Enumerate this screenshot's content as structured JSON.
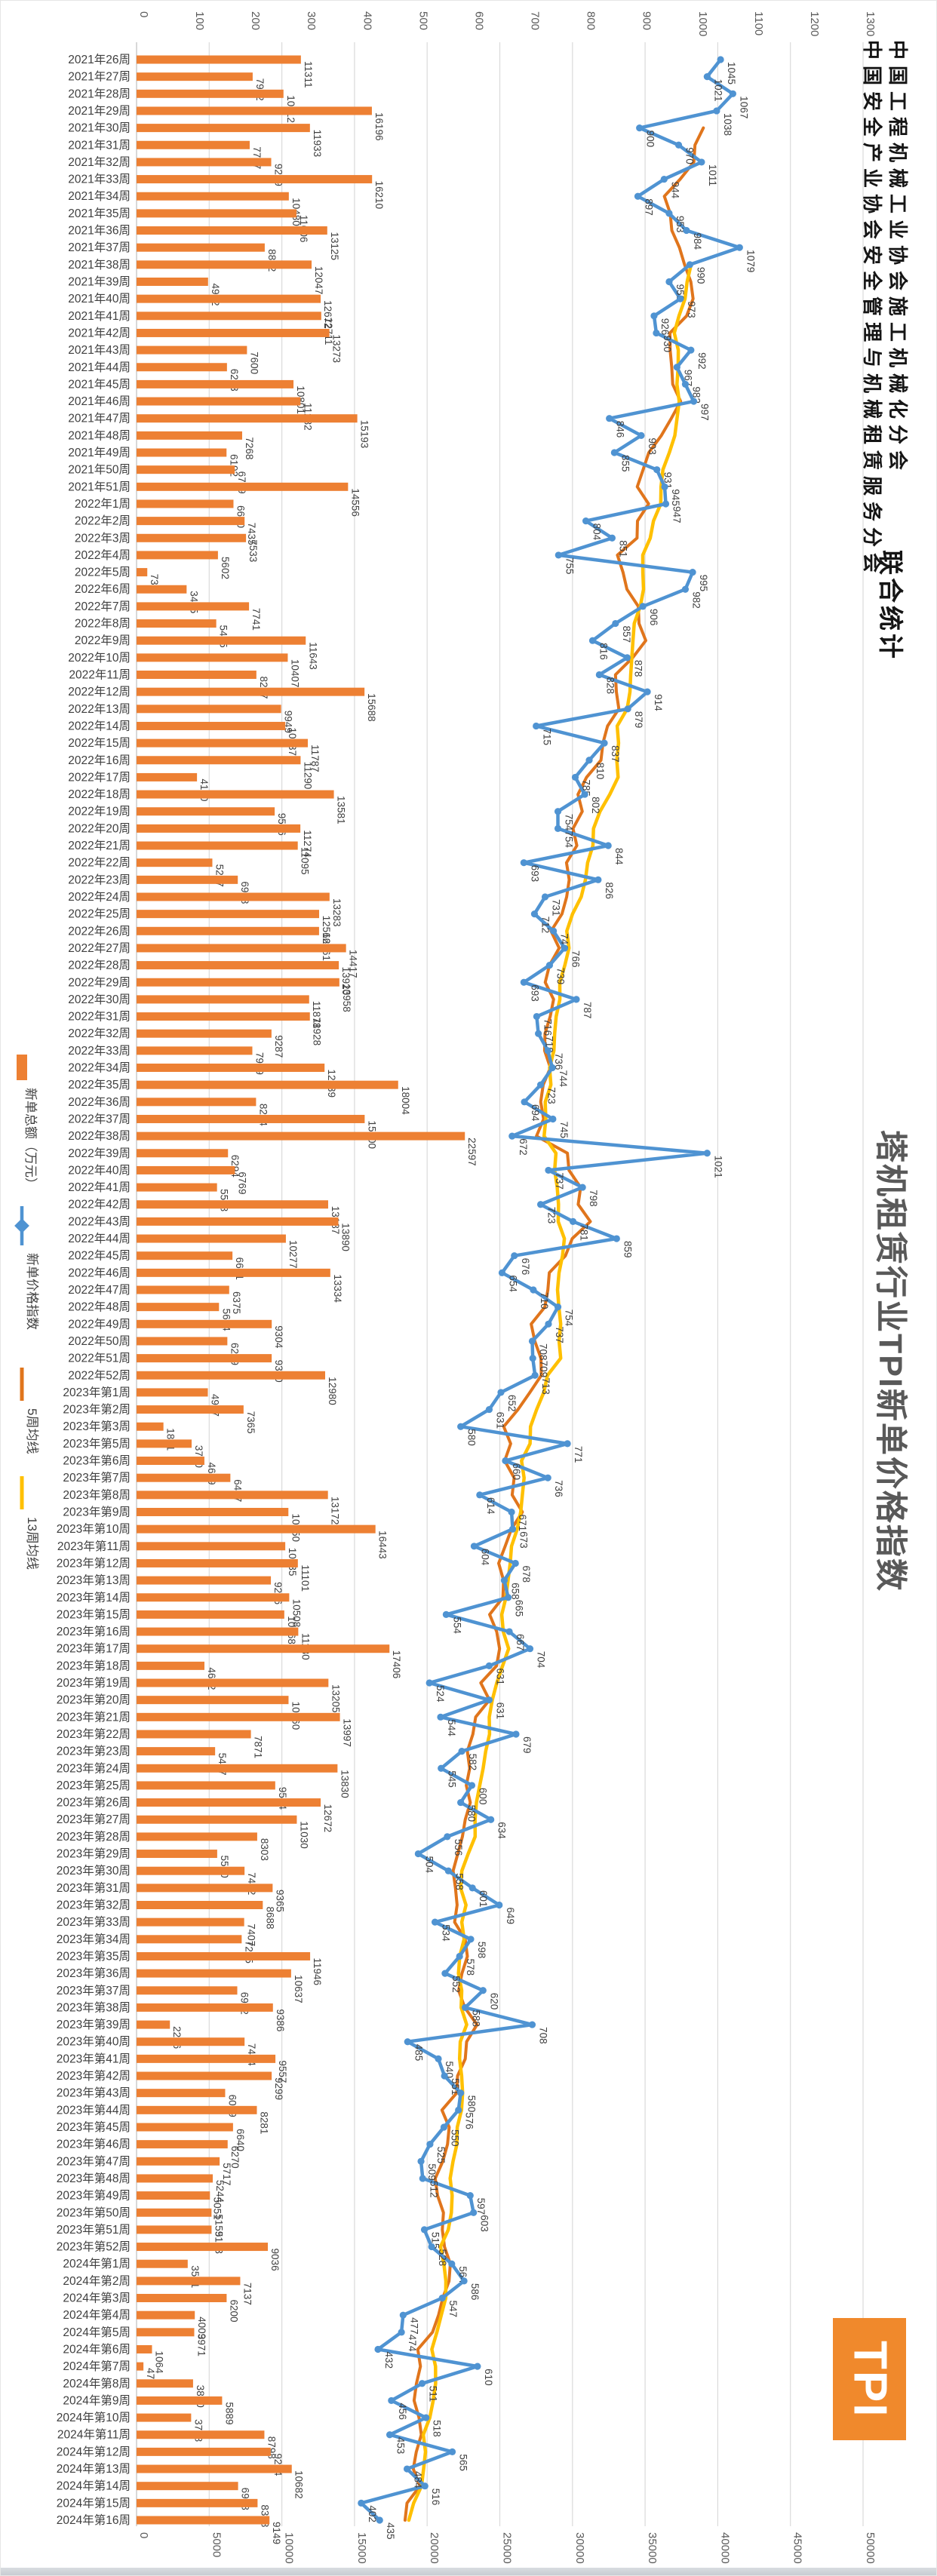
{
  "page": {
    "title": "塔机租赁行业TPI新单价格指数",
    "credit_line_1": "中国工程机械工业协会施工机械化分会",
    "credit_line_2": "中国安全产业协会安全管理与机械租赁服务分会",
    "credit_suffix": "联合统计",
    "logo_text": "TPI",
    "logo_color": "#F0892C"
  },
  "legend": {
    "items": [
      {
        "label": "新单总额（万元）",
        "type": "bar-swatch",
        "color": "#ED8033"
      },
      {
        "label": "新单价格指数",
        "type": "line-marker",
        "color": "#4F93D2"
      },
      {
        "label": "5周均线",
        "type": "line",
        "color": "#E0751C"
      },
      {
        "label": "13周均线",
        "type": "line",
        "color": "#FFC000"
      }
    ]
  },
  "chart_data": {
    "type": "bar",
    "note": "rotated 90deg: categories run vertically, bars extend horizontally",
    "title": "塔机租赁行业TPI新单价格指数",
    "grid": true,
    "axis_top": {
      "label": "价格指数",
      "min": 0,
      "max": 1300,
      "step": 100
    },
    "axis_bottom": {
      "label": "新单总额（万元）",
      "min": 0,
      "max": 50000,
      "step": 5000
    },
    "categories": [
      "2021年26周",
      "2021年27周",
      "2021年28周",
      "2021年29周",
      "2021年30周",
      "2021年31周",
      "2021年32周",
      "2021年33周",
      "2021年34周",
      "2021年35周",
      "2021年36周",
      "2021年37周",
      "2021年38周",
      "2021年39周",
      "2021年40周",
      "2021年41周",
      "2021年42周",
      "2021年43周",
      "2021年44周",
      "2021年45周",
      "2021年46周",
      "2021年47周",
      "2021年48周",
      "2021年49周",
      "2021年50周",
      "2021年51周",
      "2022年1周",
      "2022年2周",
      "2022年3周",
      "2022年4周",
      "2022年5周",
      "2022年6周",
      "2022年7周",
      "2022年8周",
      "2022年9周",
      "2022年10周",
      "2022年11周",
      "2022年12周",
      "2022年13周",
      "2022年14周",
      "2022年15周",
      "2022年16周",
      "2022年17周",
      "2022年18周",
      "2022年19周",
      "2022年20周",
      "2022年21周",
      "2022年22周",
      "2022年23周",
      "2022年24周",
      "2022年25周",
      "2022年26周",
      "2022年27周",
      "2022年28周",
      "2022年29周",
      "2022年30周",
      "2022年31周",
      "2022年32周",
      "2022年33周",
      "2022年34周",
      "2022年35周",
      "2022年36周",
      "2022年37周",
      "2022年38周",
      "2022年39周",
      "2022年40周",
      "2022年41周",
      "2022年42周",
      "2022年43周",
      "2022年44周",
      "2022年45周",
      "2022年46周",
      "2022年47周",
      "2022年48周",
      "2022年49周",
      "2022年50周",
      "2022年51周",
      "2022年52周",
      "2023年第1周",
      "2023年第2周",
      "2023年第3周",
      "2023年第5周",
      "2023年第6周",
      "2023年第7周",
      "2023年第8周",
      "2023年第9周",
      "2023年第10周",
      "2023年第11周",
      "2023年第12周",
      "2023年第13周",
      "2023年第14周",
      "2023年第15周",
      "2023年第16周",
      "2023年第17周",
      "2023年第18周",
      "2023年第19周",
      "2023年第20周",
      "2023年第21周",
      "2023年第22周",
      "2023年第23周",
      "2023年第24周",
      "2023年第25周",
      "2023年第26周",
      "2023年第27周",
      "2023年第28周",
      "2023年第29周",
      "2023年第30周",
      "2023年第31周",
      "2023年第32周",
      "2023年第33周",
      "2023年第34周",
      "2023年第35周",
      "2023年第36周",
      "2023年第37周",
      "2023年第38周",
      "2023年第39周",
      "2023年第40周",
      "2023年第41周",
      "2023年第42周",
      "2023年第43周",
      "2023年第44周",
      "2023年第45周",
      "2023年第46周",
      "2023年第47周",
      "2023年第48周",
      "2023年第49周",
      "2023年第50周",
      "2023年第51周",
      "2023年第52周",
      "2024年第1周",
      "2024年第2周",
      "2024年第3周",
      "2024年第4周",
      "2024年第5周",
      "2024年第6周",
      "2024年第7周",
      "2024年第8周",
      "2024年第9周",
      "2024年第10周",
      "2024年第11周",
      "2024年第12周",
      "2024年第13周",
      "2024年第14周",
      "2024年第15周",
      "2024年第16周"
    ],
    "series": [
      {
        "name": "新单总额（万元）",
        "kind": "bar",
        "axis": "bottom",
        "color": "#ED8033",
        "values": [
          11311,
          7992,
          10112,
          16196,
          11933,
          7787,
          9269,
          16210,
          10480,
          11006,
          13125,
          8822,
          12047,
          4922,
          12672,
          12711,
          13273,
          7600,
          6223,
          10801,
          11282,
          15193,
          7268,
          6192,
          6759,
          14556,
          6670,
          7435,
          7533,
          5602,
          739,
          3445,
          7741,
          5485,
          11643,
          10407,
          8247,
          15688,
          9949,
          10237,
          11787,
          11290,
          4160,
          13581,
          9506,
          11274,
          11095,
          5217,
          6968,
          13283,
          12566,
          12561,
          14417,
          13920,
          13958,
          11878,
          11928,
          9287,
          7969,
          12939,
          18004,
          8224,
          15700,
          22597,
          6294,
          6769,
          5538,
          13187,
          13890,
          10277,
          6601,
          13334,
          6375,
          5674,
          9304,
          6249,
          9300,
          12980,
          4907,
          7365,
          1851,
          3790,
          4669,
          6457,
          13172,
          10450,
          16443,
          10235,
          11101,
          9246,
          10508,
          10168,
          11130,
          17406,
          4672,
          13205,
          10460,
          13997,
          7871,
          5407,
          13830,
          9544,
          12672,
          11030,
          8303,
          5550,
          7432,
          9365,
          8688,
          7407,
          7235,
          11946,
          10637,
          6932,
          9386,
          2296,
          7434,
          9557,
          9299,
          6099,
          8281,
          6640,
          6270,
          5717,
          5244,
          5051,
          5159,
          5163,
          9036,
          3521,
          7137,
          6200,
          4009,
          3971,
          1064,
          474,
          3890,
          5889,
          3758,
          8798,
          9234,
          10682,
          6988,
          8328,
          9149
        ]
      },
      {
        "name": "新单价格指数",
        "kind": "line",
        "axis": "top",
        "color": "#4F93D2",
        "values": [
          1045,
          1021,
          1067,
          1038,
          900,
          970,
          1011,
          944,
          897,
          953,
          984,
          1079,
          990,
          953,
          973,
          926,
          930,
          992,
          967,
          982,
          997,
          846,
          903,
          855,
          931,
          945,
          947,
          804,
          851,
          755,
          995,
          982,
          906,
          857,
          816,
          878,
          828,
          914,
          879,
          715,
          837,
          810,
          785,
          802,
          754,
          754,
          844,
          693,
          826,
          731,
          712,
          746,
          766,
          739,
          693,
          787,
          716,
          719,
          736,
          744,
          723,
          694,
          745,
          672,
          1021,
          737,
          798,
          723,
          781,
          859,
          676,
          654,
          710,
          754,
          737,
          708,
          709,
          713,
          652,
          631,
          580,
          771,
          660,
          736,
          614,
          671,
          673,
          604,
          678,
          658,
          665,
          554,
          667,
          704,
          631,
          524,
          631,
          544,
          679,
          582,
          545,
          600,
          580,
          634,
          556,
          504,
          558,
          601,
          649,
          534,
          598,
          578,
          552,
          620,
          588,
          708,
          485,
          540,
          551,
          580,
          576,
          550,
          525,
          509,
          512,
          597,
          603,
          515,
          528,
          564,
          586,
          547,
          477,
          474,
          432,
          610,
          511,
          456,
          518,
          453,
          565,
          484,
          516,
          402,
          435
        ]
      },
      {
        "name": "5周均线",
        "kind": "moving-average",
        "window": 5,
        "color": "#E0751C"
      },
      {
        "name": "13周均线",
        "kind": "moving-average",
        "window": 13,
        "color": "#FFC000"
      }
    ]
  }
}
